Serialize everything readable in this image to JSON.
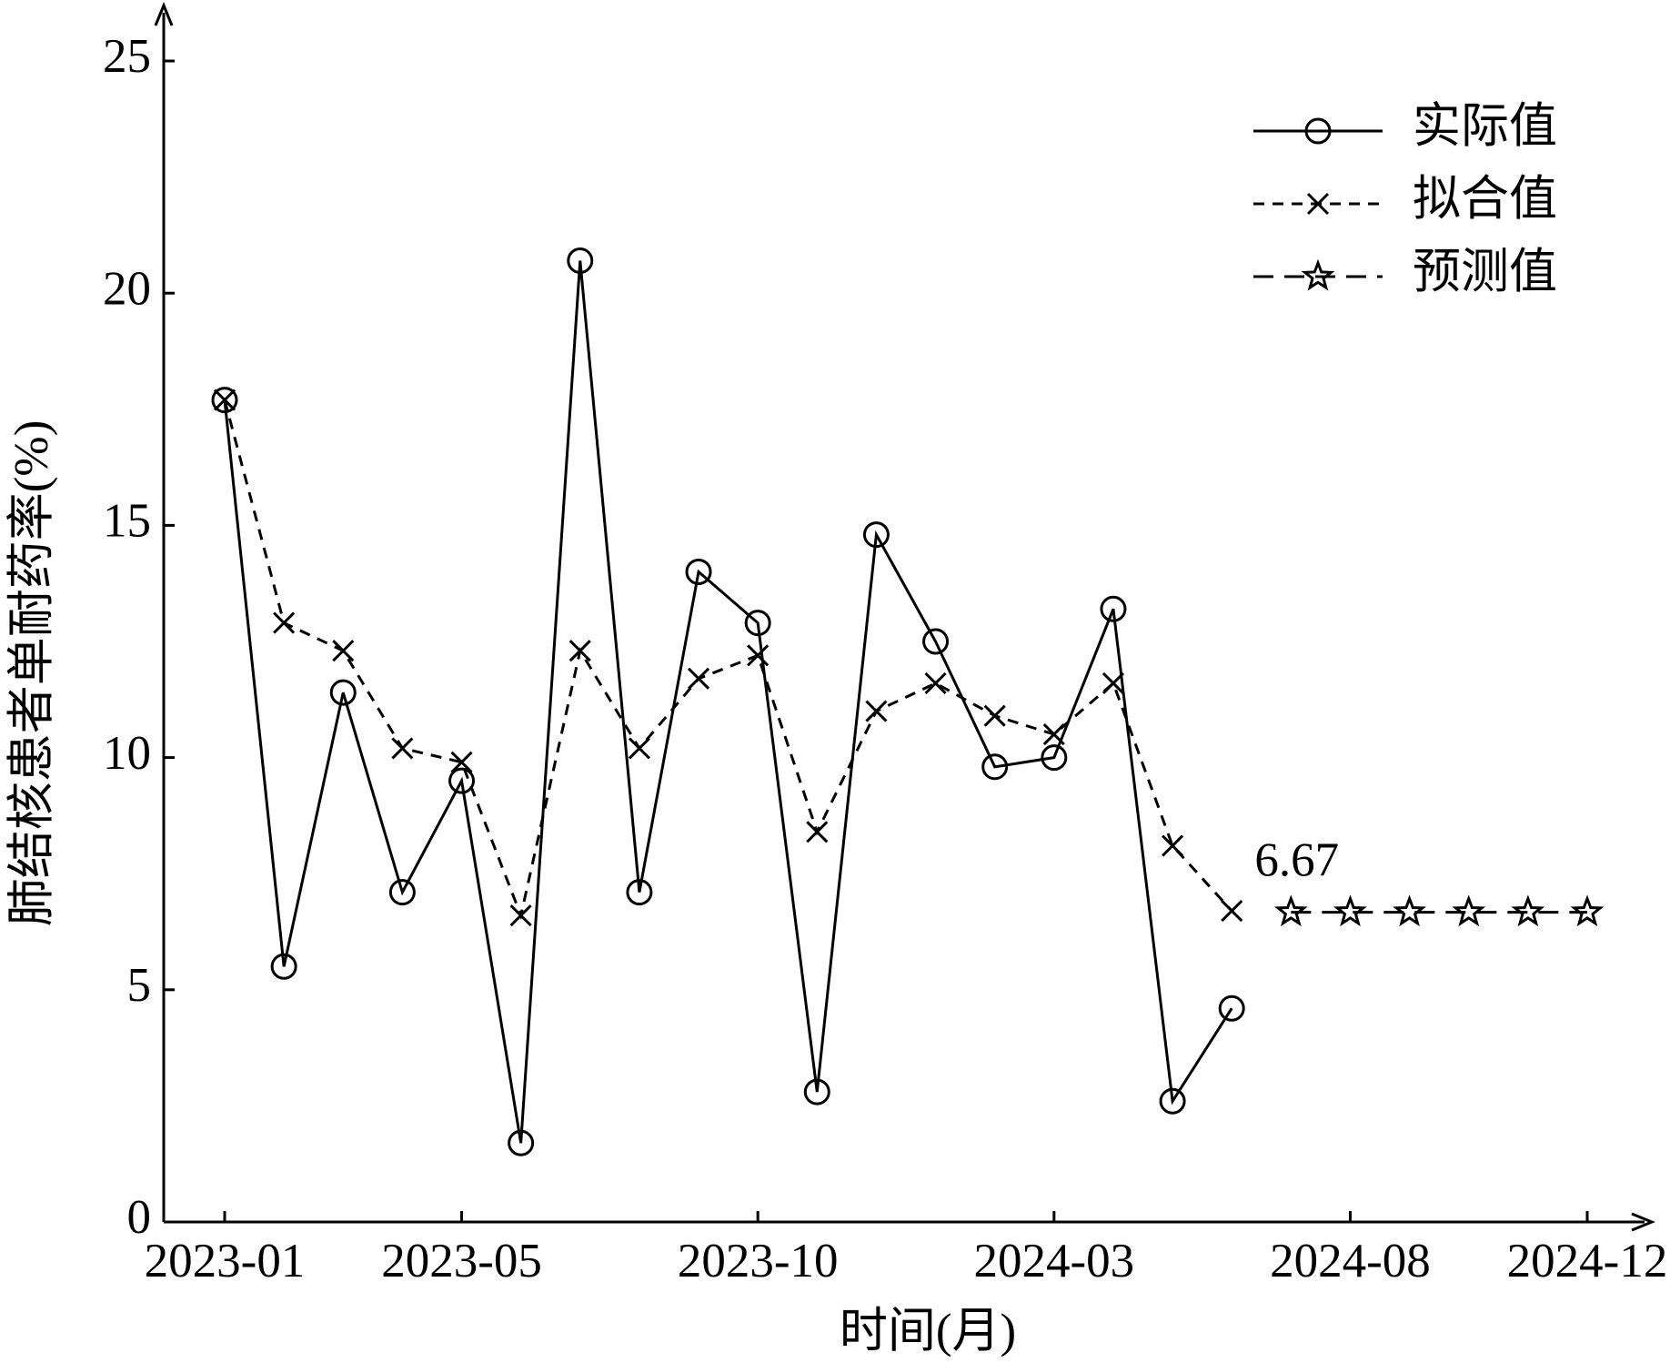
{
  "chart_data": {
    "type": "line",
    "xlabel": "时间(月)",
    "ylabel": "肺结核患者单耐药率(%)",
    "categories": [
      "2023-01",
      null,
      null,
      null,
      "2023-05",
      null,
      null,
      null,
      null,
      "2023-10",
      null,
      null,
      null,
      null,
      "2024-03",
      null,
      null,
      null,
      null,
      "2024-08",
      null,
      null,
      null,
      "2024-12"
    ],
    "series": [
      {
        "name": "实际值",
        "color": "#000000",
        "marker": "circle",
        "dash": "solid",
        "values": [
          17.7,
          5.5,
          11.4,
          7.1,
          9.5,
          1.7,
          20.7,
          7.1,
          14.0,
          12.9,
          2.8,
          14.8,
          12.5,
          9.8,
          10.0,
          13.2,
          2.6,
          4.6,
          null,
          null,
          null,
          null,
          null,
          null
        ]
      },
      {
        "name": "拟合值",
        "color": "#000000",
        "marker": "x",
        "dash": "short",
        "values": [
          17.7,
          12.9,
          12.3,
          10.2,
          9.9,
          6.6,
          12.3,
          10.2,
          11.7,
          12.2,
          8.4,
          11.0,
          11.6,
          10.9,
          10.5,
          11.6,
          8.1,
          6.7,
          null,
          null,
          null,
          null,
          null,
          null
        ]
      },
      {
        "name": "预测值",
        "color": "#000000",
        "marker": "star",
        "dash": "long",
        "values": [
          null,
          null,
          null,
          null,
          null,
          null,
          null,
          null,
          null,
          null,
          null,
          null,
          null,
          null,
          null,
          null,
          null,
          null,
          6.67,
          6.67,
          6.67,
          6.67,
          6.67,
          6.67
        ],
        "value_labels": [
          null,
          null,
          null,
          null,
          null,
          null,
          null,
          null,
          null,
          null,
          null,
          null,
          null,
          null,
          null,
          null,
          null,
          null,
          "6.67",
          null,
          null,
          null,
          null,
          null
        ]
      }
    ],
    "ylim": [
      0,
      25
    ],
    "yticks": [
      0,
      5,
      10,
      15,
      20,
      25
    ],
    "grid": false,
    "legend": "upper right"
  }
}
